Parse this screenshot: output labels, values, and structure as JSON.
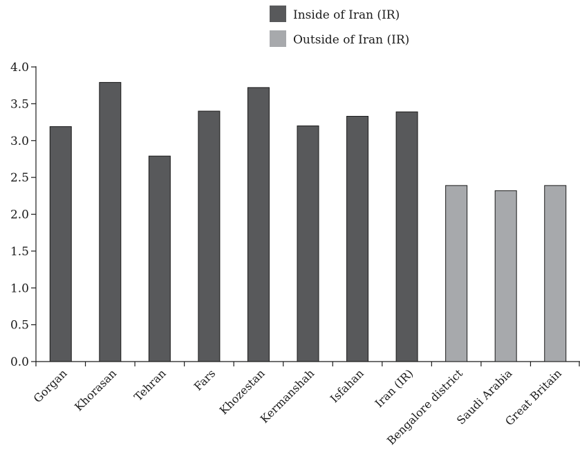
{
  "chart_data": {
    "type": "bar",
    "categories": [
      "Gorgan",
      "Khorasan",
      "Tehran",
      "Fars",
      "Khozestan",
      "Kermanshah",
      "Isfahan",
      "Iran (IR)",
      "Bengalore district",
      "Saudi Arabia",
      "Great Britain"
    ],
    "values": [
      3.19,
      3.79,
      2.79,
      3.4,
      3.72,
      3.2,
      3.33,
      3.39,
      2.39,
      2.32,
      2.39
    ],
    "groups": [
      "inside",
      "inside",
      "inside",
      "inside",
      "inside",
      "inside",
      "inside",
      "inside",
      "outside",
      "outside",
      "outside"
    ],
    "series": [
      {
        "key": "inside",
        "name": "Inside of Iran (IR)",
        "color": "#58595b"
      },
      {
        "key": "outside",
        "name": "Outside of Iran (IR)",
        "color": "#a7a9ac"
      }
    ],
    "y_ticks": [
      "0.0",
      "0.5",
      "1.0",
      "1.5",
      "2.0",
      "2.5",
      "3.0",
      "3.5",
      "4.0"
    ],
    "ylim": [
      0,
      4.0
    ],
    "legend_position": "top-right",
    "grid": false
  }
}
